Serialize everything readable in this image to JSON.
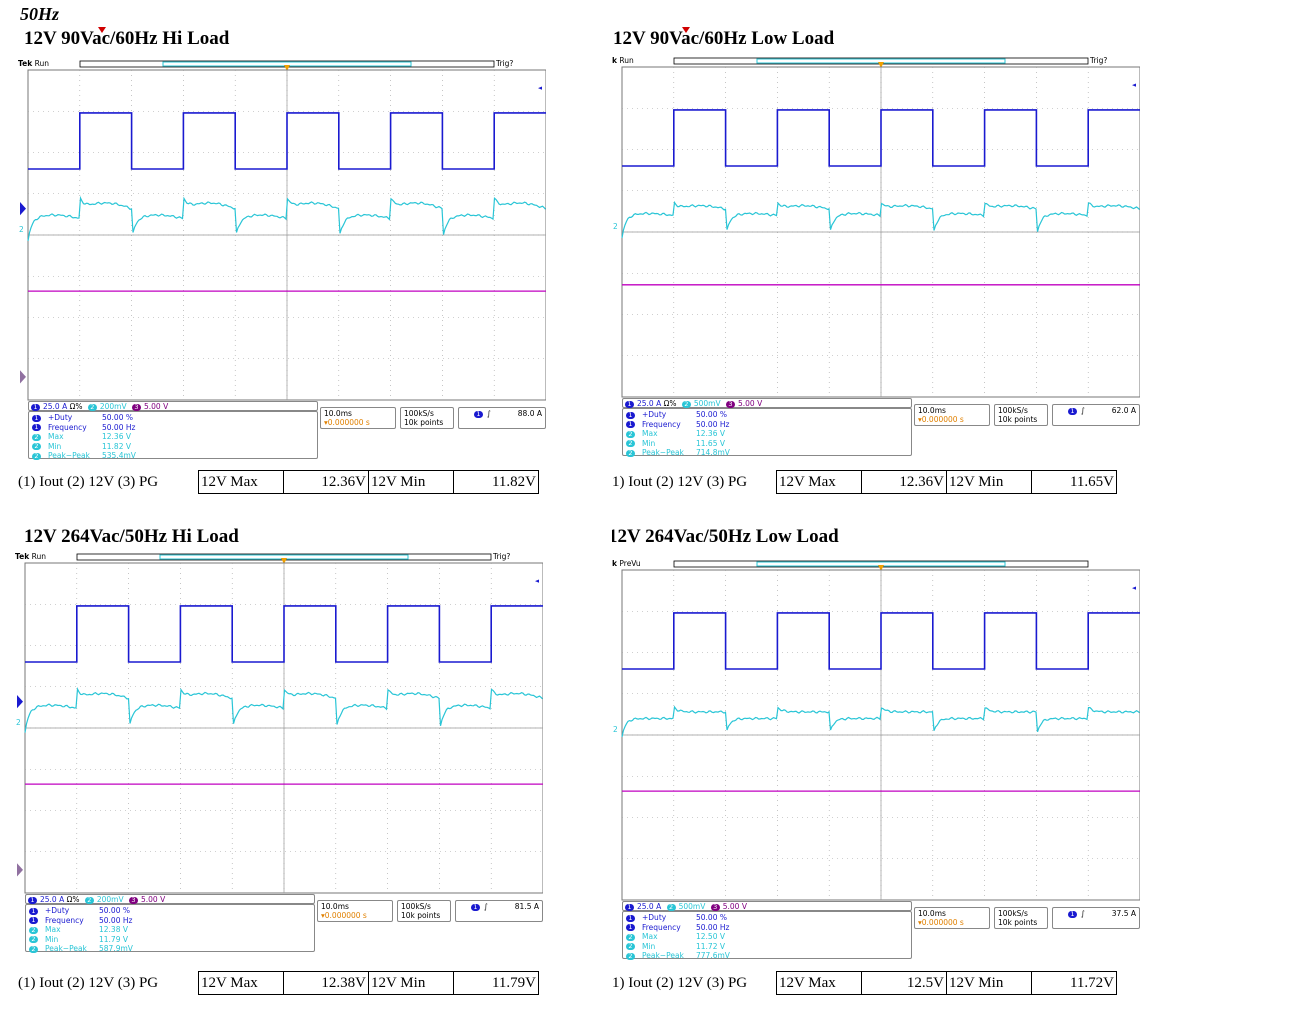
{
  "page_heading": "50Hz",
  "panels": [
    {
      "title": "12V 90Vac/60Hz Hi Load",
      "scope_brand": "Tek",
      "scope_state": "Run",
      "trig_text": "Trig?",
      "ch_status": {
        "ch1": "25.0 A",
        "ch1_suffix": "Ω%",
        "ch2": "200mV",
        "ch3": "5.00 V"
      },
      "measurements": [
        {
          "ch": "1",
          "label": "+Duty",
          "value": "50.00 %"
        },
        {
          "ch": "1",
          "label": "Frequency",
          "value": "50.00 Hz"
        },
        {
          "ch": "2",
          "label": "Max",
          "value": "12.36 V"
        },
        {
          "ch": "2",
          "label": "Min",
          "value": "11.82 V"
        },
        {
          "ch": "2",
          "label": "Peak−Peak",
          "value": "535.4mV"
        }
      ],
      "timebase": "10.0ms",
      "trig_pos": "▾0.000000 s",
      "sample_rate": "100kS/s",
      "record": "10k points",
      "trig_level": "88.0 A",
      "caption": "(1) Iout (2) 12V (3) PG",
      "table": {
        "max_label": "12V Max",
        "max_value": "12.36V",
        "min_label": "12V Min",
        "min_value": "11.82V"
      }
    },
    {
      "title": "12V 90Vac/60Hz Low Load",
      "scope_brand": "k",
      "scope_state": "Run",
      "trig_text": "Trig?",
      "ch_status": {
        "ch1": "25.0 A",
        "ch1_suffix": "Ω%",
        "ch2": "500mV",
        "ch3": "5.00 V"
      },
      "measurements": [
        {
          "ch": "1",
          "label": "+Duty",
          "value": "50.00 %"
        },
        {
          "ch": "1",
          "label": "Frequency",
          "value": "50.00 Hz"
        },
        {
          "ch": "2",
          "label": "Max",
          "value": "12.36 V"
        },
        {
          "ch": "2",
          "label": "Min",
          "value": "11.65 V"
        },
        {
          "ch": "2",
          "label": "Peak−Peak",
          "value": "714.8mV"
        }
      ],
      "timebase": "10.0ms",
      "trig_pos": "▾0.000000 s",
      "sample_rate": "100kS/s",
      "record": "10k points",
      "trig_level": "62.0 A",
      "caption": "1) Iout (2) 12V (3) PG",
      "table": {
        "max_label": "12V Max",
        "max_value": "12.36V",
        "min_label": "12V Min",
        "min_value": "11.65V"
      }
    },
    {
      "title": "12V 264Vac/50Hz Hi Load",
      "scope_brand": "Tek",
      "scope_state": "Run",
      "trig_text": "Trig?",
      "ch_status": {
        "ch1": "25.0 A",
        "ch1_suffix": "Ω%",
        "ch2": "200mV",
        "ch3": "5.00 V"
      },
      "measurements": [
        {
          "ch": "1",
          "label": "+Duty",
          "value": "50.00 %"
        },
        {
          "ch": "1",
          "label": "Frequency",
          "value": "50.00 Hz"
        },
        {
          "ch": "2",
          "label": "Max",
          "value": "12.38 V"
        },
        {
          "ch": "2",
          "label": "Min",
          "value": "11.79 V"
        },
        {
          "ch": "2",
          "label": "Peak−Peak",
          "value": "587.9mV"
        }
      ],
      "timebase": "10.0ms",
      "trig_pos": "▾0.000000 s",
      "sample_rate": "100kS/s",
      "record": "10k points",
      "trig_level": "81.5 A",
      "caption": "(1) Iout (2) 12V (3) PG",
      "table": {
        "max_label": "12V Max",
        "max_value": "12.38V",
        "min_label": "12V Min",
        "min_value": "11.79V"
      }
    },
    {
      "title": "12V 264Vac/50Hz Low Load",
      "scope_brand": "k",
      "scope_state": "PreVu",
      "trig_text": "",
      "ch_status": {
        "ch1": "25.0 A",
        "ch1_suffix": "",
        "ch2": "500mV",
        "ch3": "5.00 V"
      },
      "measurements": [
        {
          "ch": "1",
          "label": "+Duty",
          "value": "50.00 %"
        },
        {
          "ch": "1",
          "label": "Frequency",
          "value": "50.00 Hz"
        },
        {
          "ch": "2",
          "label": "Max",
          "value": "12.50 V"
        },
        {
          "ch": "2",
          "label": "Min",
          "value": "11.72 V"
        },
        {
          "ch": "2",
          "label": "Peak−Peak",
          "value": "777.6mV"
        }
      ],
      "timebase": "10.0ms",
      "trig_pos": "▾0.000000 s",
      "sample_rate": "100kS/s",
      "record": "10k points",
      "trig_level": "37.5 A",
      "caption": "1) Iout (2) 12V (3) PG",
      "table": {
        "max_label": "12V Max",
        "max_value": "12.5V",
        "min_label": "12V Min",
        "min_value": "11.72V"
      }
    }
  ],
  "colors": {
    "ch1": "#1a1ad0",
    "ch2": "#29c5d6",
    "ch3": "#c000c0",
    "grid": "#a0a0a0"
  }
}
